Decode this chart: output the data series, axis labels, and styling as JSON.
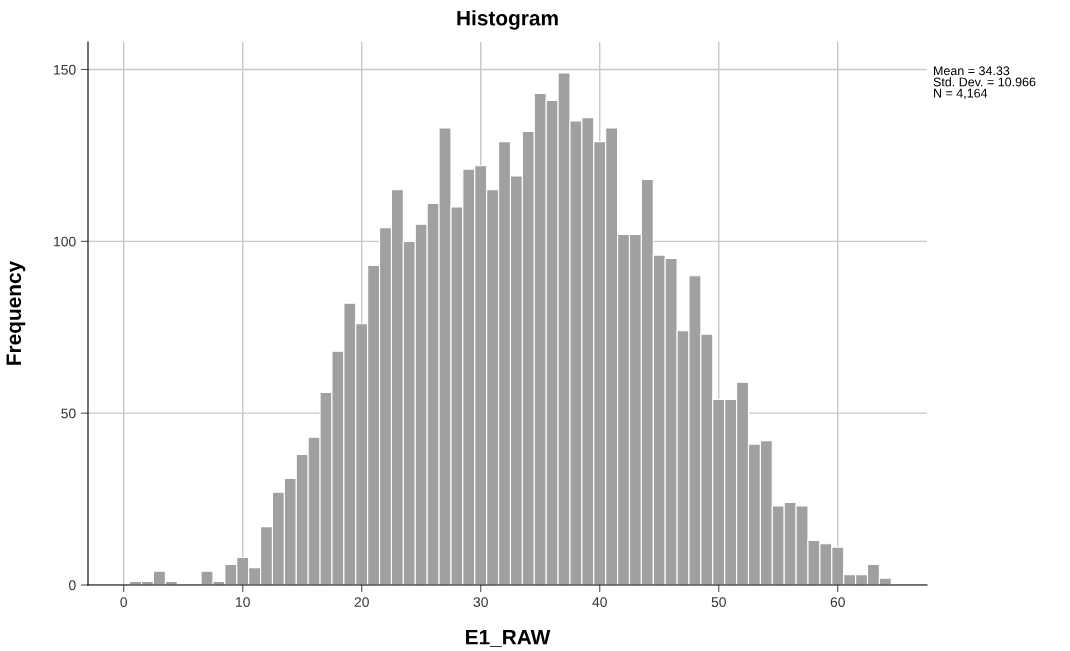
{
  "chart_data": {
    "type": "histogram",
    "title": "Histogram",
    "xlabel": "E1_RAW",
    "ylabel": "Frequency",
    "bins": [
      0.5,
      1.5,
      2.5,
      3.5,
      4.5,
      5.5,
      6.5,
      7.5,
      8.5,
      9.5,
      10.5,
      11.5,
      12.5,
      13.5,
      14.5,
      15.5,
      16.5,
      17.5,
      18.5,
      19.5,
      20.5,
      21.5,
      22.5,
      23.5,
      24.5,
      25.5,
      26.5,
      27.5,
      28.5,
      29.5,
      30.5,
      31.5,
      32.5,
      33.5,
      34.5,
      35.5,
      36.5,
      37.5,
      38.5,
      39.5,
      40.5,
      41.5,
      42.5,
      43.5,
      44.5,
      45.5,
      46.5,
      47.5,
      48.5,
      49.5,
      50.5,
      51.5,
      52.5,
      53.5,
      54.5,
      55.5,
      56.5,
      57.5,
      58.5,
      59.5,
      60.5,
      61.5,
      62.5,
      63.5,
      64.5
    ],
    "values": [
      1,
      1,
      4,
      1,
      0,
      0,
      4,
      1,
      6,
      8,
      5,
      17,
      27,
      31,
      38,
      43,
      56,
      68,
      82,
      76,
      93,
      104,
      115,
      100,
      105,
      111,
      133,
      110,
      121,
      122,
      115,
      129,
      119,
      132,
      143,
      141,
      149,
      135,
      136,
      129,
      133,
      102,
      102,
      118,
      96,
      95,
      74,
      90,
      73,
      54,
      54,
      59,
      41,
      42,
      23,
      24,
      23,
      13,
      12,
      11,
      3,
      3,
      6,
      2
    ],
    "color": "#a0a0a0",
    "xlim": [
      -3,
      67.5
    ],
    "xticks": [
      0,
      10,
      20,
      30,
      40,
      50,
      60
    ],
    "ylim": [
      0,
      158
    ],
    "yticks": [
      0,
      50,
      100,
      150
    ],
    "grid": true,
    "annotations": [
      "Mean = 34.33\nStd. Dev. = 10.966\nN = 4,164"
    ]
  }
}
